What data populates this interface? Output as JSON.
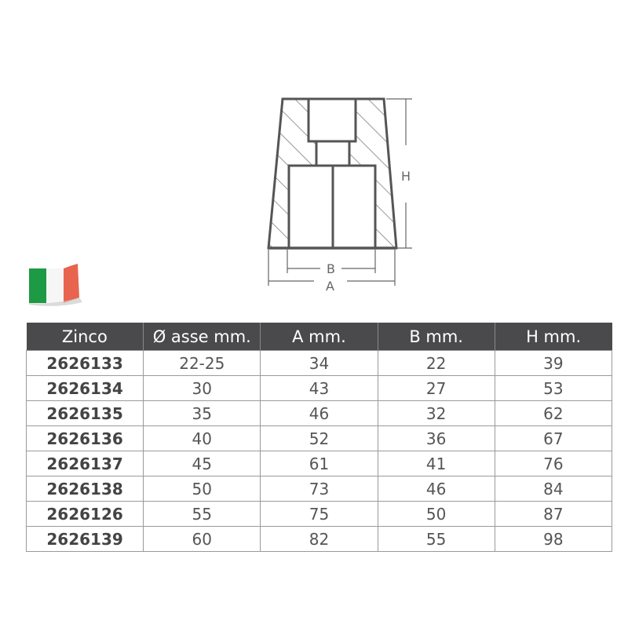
{
  "drawing": {
    "labels": {
      "h": "H",
      "a": "A",
      "b": "B"
    }
  },
  "flag": {
    "colors": [
      "#1e9a45",
      "#ffffff",
      "#e53a2e"
    ]
  },
  "table": {
    "headers": [
      "Zinco",
      "Ø asse mm.",
      "A mm.",
      "B mm.",
      "H mm."
    ],
    "rows": [
      [
        "2626133",
        "22-25",
        "34",
        "22",
        "39"
      ],
      [
        "2626134",
        "30",
        "43",
        "27",
        "53"
      ],
      [
        "2626135",
        "35",
        "46",
        "32",
        "62"
      ],
      [
        "2626136",
        "40",
        "52",
        "36",
        "67"
      ],
      [
        "2626137",
        "45",
        "61",
        "41",
        "76"
      ],
      [
        "2626138",
        "50",
        "73",
        "46",
        "84"
      ],
      [
        "2626126",
        "55",
        "75",
        "50",
        "87"
      ],
      [
        "2626139",
        "60",
        "82",
        "55",
        "98"
      ]
    ]
  }
}
